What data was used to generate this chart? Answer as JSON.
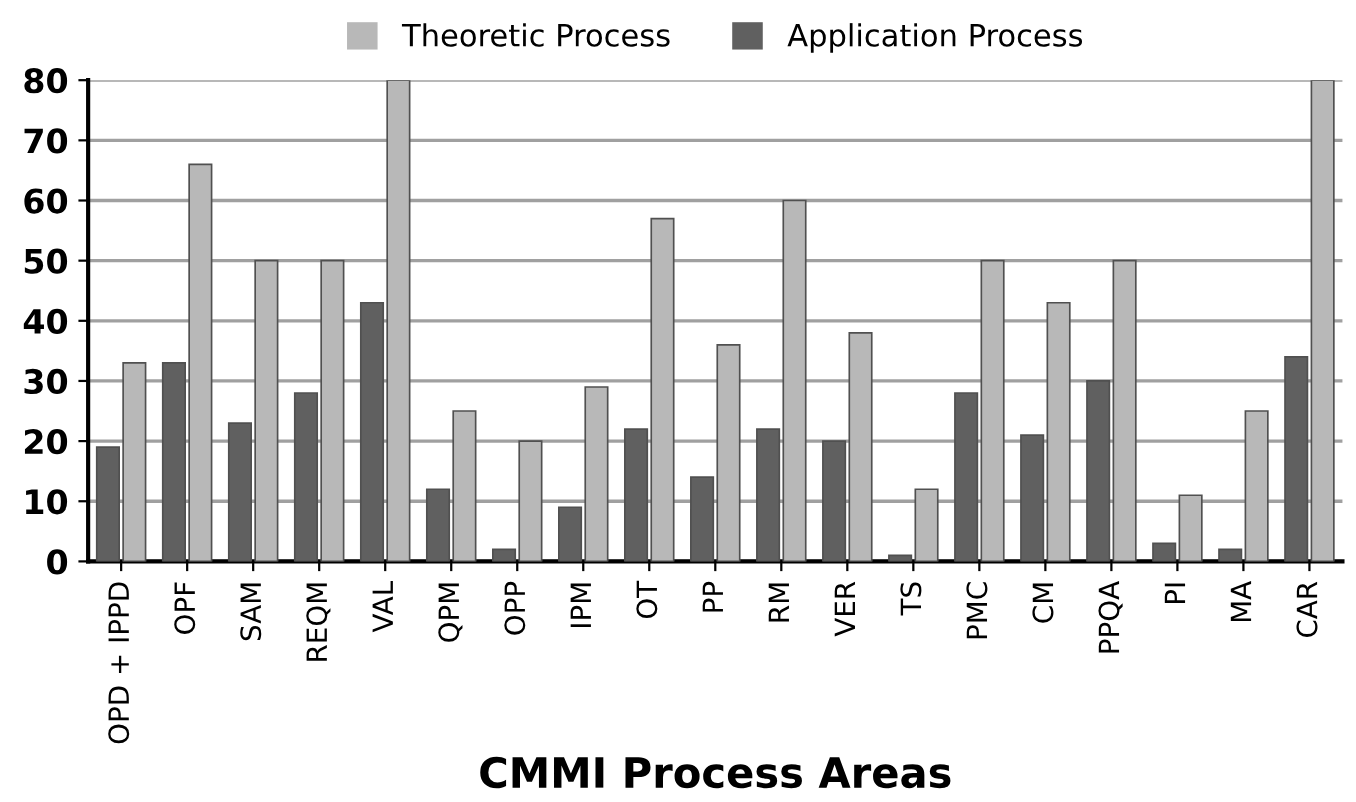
{
  "chart_data": {
    "type": "bar",
    "xlabel": "CMMI Process Areas",
    "categories": [
      "OPD + IPPD",
      "OPF",
      "SAM",
      "REQM",
      "VAL",
      "QPM",
      "OPP",
      "IPM",
      "OT",
      "PP",
      "RM",
      "VER",
      "TS",
      "PMC",
      "CM",
      "PPQA",
      "PI",
      "MA",
      "CAR"
    ],
    "series": [
      {
        "name": "Application Process",
        "color": "#606060",
        "values": [
          19,
          33,
          23,
          28,
          43,
          12,
          2,
          9,
          22,
          14,
          22,
          20,
          1,
          28,
          21,
          30,
          3,
          2,
          34
        ]
      },
      {
        "name": "Theoretic Process",
        "color": "#b8b8b8",
        "values": [
          33,
          66,
          50,
          50,
          80,
          25,
          20,
          29,
          57,
          36,
          60,
          38,
          12,
          50,
          43,
          50,
          11,
          25,
          80
        ]
      }
    ],
    "ylim": [
      0,
      80
    ],
    "yticks": [
      0,
      10,
      20,
      30,
      40,
      50,
      60,
      70,
      80
    ],
    "grid": "y",
    "legend": "top"
  }
}
